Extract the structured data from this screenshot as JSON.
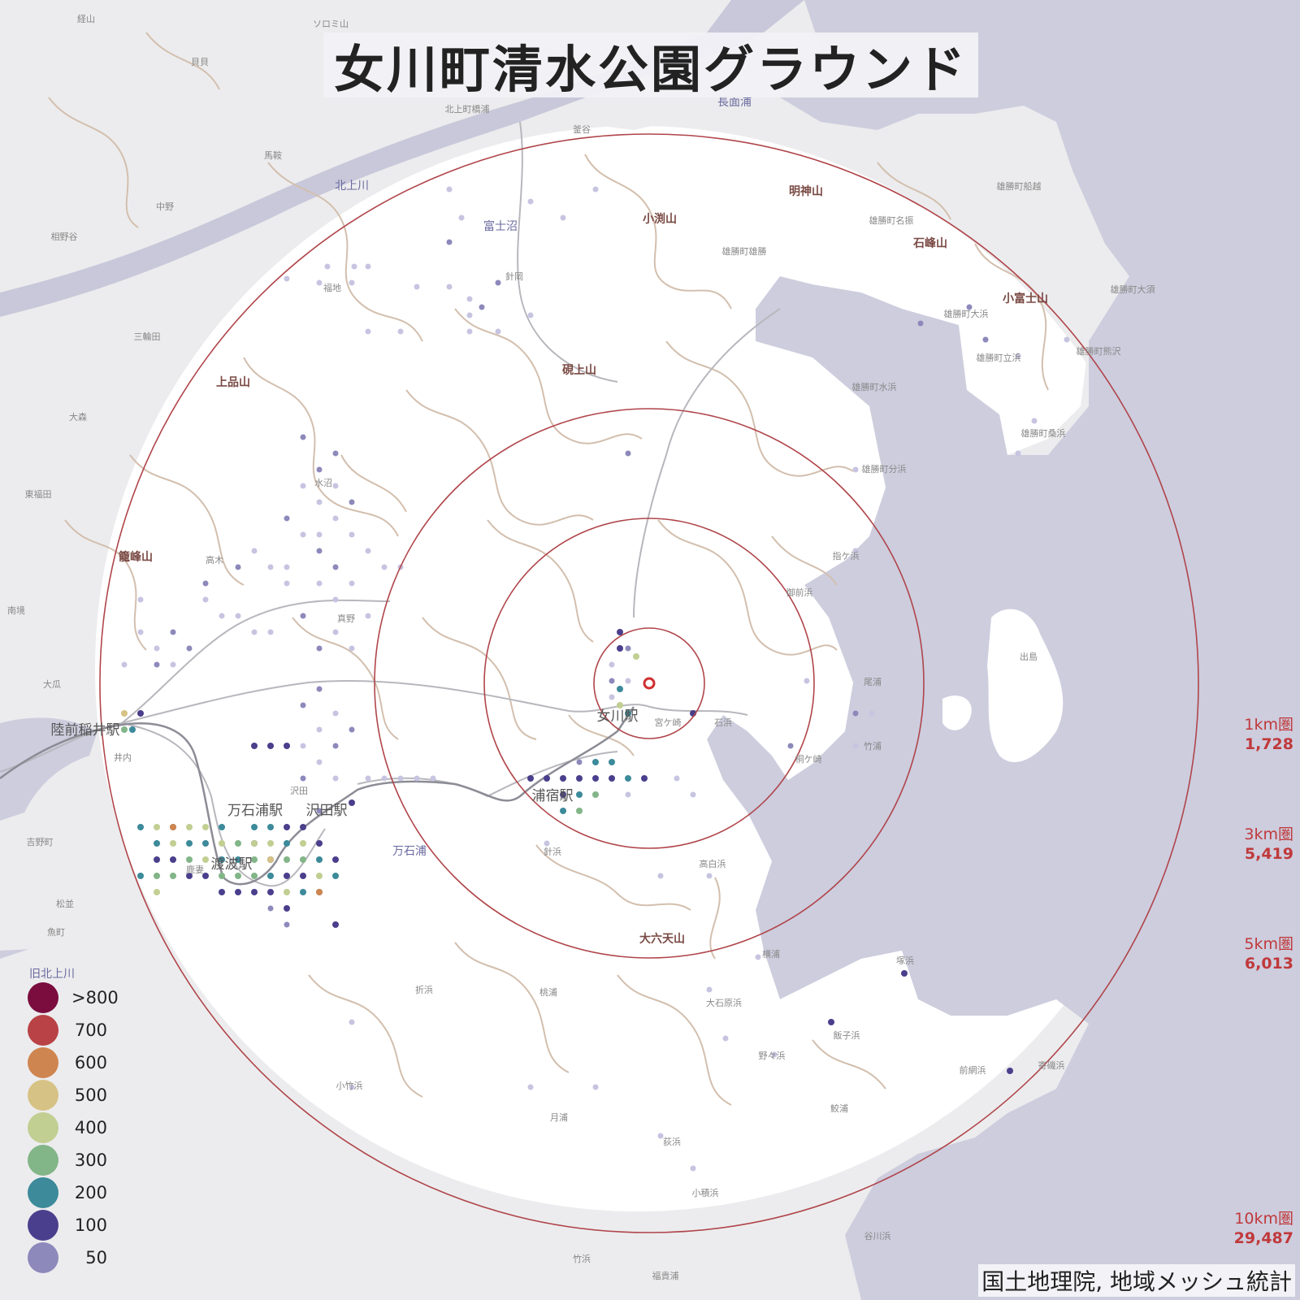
{
  "title": "女川町清水公園グラウンド",
  "credit": "国土地理院, 地域メッシュ統計",
  "rings": [
    {
      "label": "1km圏",
      "count": "1,728"
    },
    {
      "label": "3km圏",
      "count": "5,419"
    },
    {
      "label": "5km圏",
      "count": "6,013"
    },
    {
      "label": "10km圏",
      "count": "29,487"
    }
  ],
  "legend": [
    {
      "label": ">800",
      "color": "#7a0c3e"
    },
    {
      "label": "700",
      "color": "#b84245"
    },
    {
      "label": "600",
      "color": "#cf8550"
    },
    {
      "label": "500",
      "color": "#d6c284"
    },
    {
      "label": "400",
      "color": "#c1cf92"
    },
    {
      "label": "300",
      "color": "#82b587"
    },
    {
      "label": "200",
      "color": "#3c8a9a"
    },
    {
      "label": "100",
      "color": "#4a3f8c"
    },
    {
      "label": "50",
      "color": "#8d89bb"
    }
  ],
  "places": {
    "major": [
      "陸前稲井駅",
      "万石浦駅",
      "沢田駅",
      "渡波駅",
      "浦宿駅",
      "女川駅"
    ],
    "mountains": [
      "明神山",
      "小渕山",
      "石峰山",
      "小富士山",
      "硯上山",
      "上品山",
      "籠峰山",
      "大六天山"
    ],
    "water": [
      "北上川",
      "長面浦",
      "富士沼",
      "万石浦",
      "旧北上川"
    ],
    "minor": [
      "経山",
      "ソロミ山",
      "貝貝",
      "北上町橋浦",
      "釜谷",
      "馬鞍",
      "中野",
      "相野谷",
      "三輪田",
      "福地",
      "針岡",
      "雄勝町船越",
      "雄勝町名振",
      "雄勝町雄勝",
      "雄勝町大須",
      "雄勝町大浜",
      "雄勝町立浜",
      "雄勝町熊沢",
      "雄勝町水浜",
      "雄勝町桑浜",
      "雄勝町分浜",
      "指ケ浜",
      "御前浜",
      "出島",
      "尾浦",
      "竹浦",
      "桐ケ崎",
      "石浜",
      "宮ケ崎",
      "高白浜",
      "横浦",
      "大石原浜",
      "野々浜",
      "飯子浜",
      "塚浜",
      "前網浜",
      "寄磯浜",
      "鮫浦",
      "荻浜",
      "月浦",
      "小積浜",
      "谷川浜",
      "福貴浦",
      "竹浜",
      "小竹浜",
      "折浜",
      "桃浦",
      "針浜",
      "沢田",
      "水沼",
      "高木",
      "真野",
      "井内",
      "大瓜",
      "南境",
      "東福田",
      "大森",
      "吉野町",
      "松並",
      "魚町",
      "鹿妻"
    ]
  },
  "center_icon": "target-marker-icon"
}
